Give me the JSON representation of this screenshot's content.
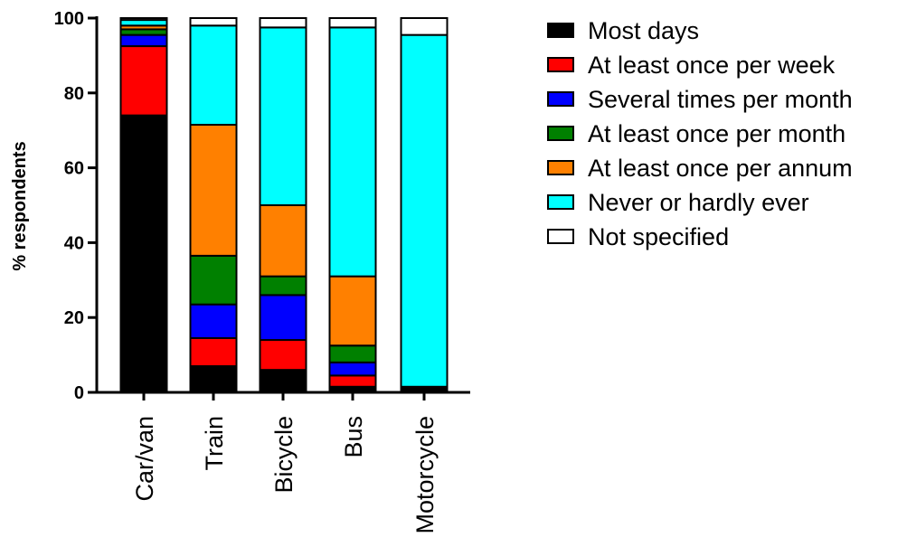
{
  "chart_data": {
    "type": "bar",
    "stacked": true,
    "ylabel": "% respondents",
    "xlabel": "",
    "ylim": [
      0,
      100
    ],
    "yticks": [
      0,
      20,
      40,
      60,
      80,
      100
    ],
    "categories": [
      "Car/van",
      "Train",
      "Bicycle",
      "Bus",
      "Motorcycle"
    ],
    "legend_position": "right",
    "series": [
      {
        "name": "Most days",
        "color": "#000000",
        "values": [
          74,
          7,
          6,
          1.5,
          1.0
        ]
      },
      {
        "name": "At least once per week",
        "color": "#ff0000",
        "values": [
          18.5,
          7.5,
          8,
          3,
          0.5
        ]
      },
      {
        "name": "Several times per month",
        "color": "#0000ff",
        "values": [
          3,
          9,
          12,
          3.5,
          0
        ]
      },
      {
        "name": "At least once per month",
        "color": "#008000",
        "values": [
          1.5,
          13,
          5,
          4.5,
          0
        ]
      },
      {
        "name": "At least once per annum",
        "color": "#ff8000",
        "values": [
          1,
          35,
          19,
          18.5,
          0
        ]
      },
      {
        "name": "Never or hardly ever",
        "color": "#00ffff",
        "values": [
          1.5,
          26.5,
          47.5,
          66.5,
          94.0
        ]
      },
      {
        "name": "Not specified",
        "color": "#ffffff",
        "values": [
          0.5,
          2,
          2.5,
          2.5,
          4.5
        ]
      }
    ]
  }
}
